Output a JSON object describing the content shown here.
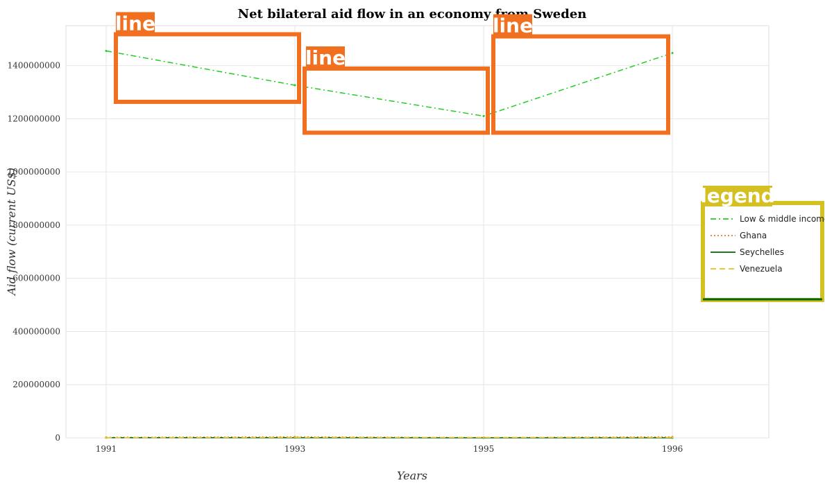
{
  "chart_data": {
    "type": "line",
    "title": "Net bilateral aid flow in an economy from Sweden",
    "xlabel": "Years",
    "ylabel": "Aid flow (current US$)",
    "categories": [
      "1991",
      "1993",
      "1995",
      "1996"
    ],
    "ylim": [
      0,
      1550000000
    ],
    "yticks": [
      0,
      200000000,
      400000000,
      600000000,
      800000000,
      1000000000,
      1200000000,
      1400000000
    ],
    "ytick_labels": [
      "0",
      "200000000",
      "400000000",
      "600000000",
      "800000000",
      "1000000000",
      "1200000000",
      "1400000000"
    ],
    "grid": true,
    "legend_position": "right",
    "series": [
      {
        "name": "Low & middle income",
        "color": "#22cc22",
        "style": "dash-dot",
        "values": [
          1455000000,
          1326000000,
          1210000000,
          1447000000
        ]
      },
      {
        "name": "Ghana",
        "color": "#cc8833",
        "style": "dotted",
        "values": [
          2000000,
          4000000,
          1000000,
          4000000
        ]
      },
      {
        "name": "Seychelles",
        "color": "#006600",
        "style": "solid",
        "values": [
          500000,
          600000,
          300000,
          400000
        ]
      },
      {
        "name": "Venezuela",
        "color": "#e8c020",
        "style": "dashed",
        "values": [
          1000000,
          2000000,
          1500000,
          1800000
        ]
      }
    ],
    "annotations": {
      "label": "line",
      "color": "#f07020",
      "legend_title": "legend",
      "legend_color": "#d4c020"
    }
  }
}
